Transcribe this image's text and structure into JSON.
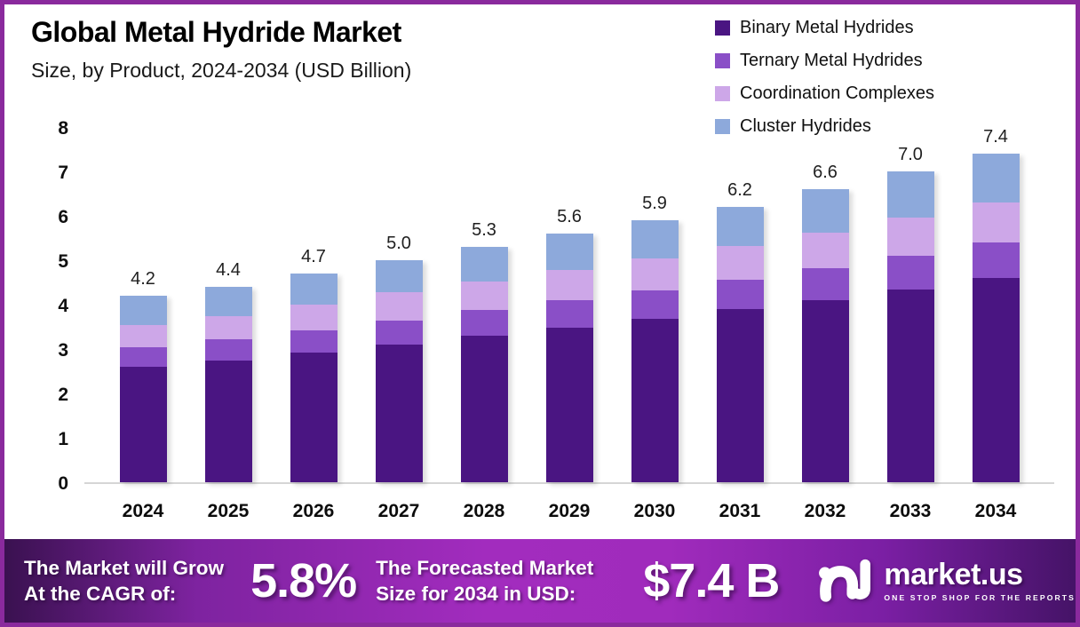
{
  "header": {
    "title": "Global Metal Hydride Market",
    "subtitle": "Size, by Product, 2024-2034 (USD Billion)"
  },
  "chart_data": {
    "type": "bar",
    "stacked": true,
    "title": "Global Metal Hydride Market Size, by Product, 2024-2034 (USD Billion)",
    "categories": [
      "2024",
      "2025",
      "2026",
      "2027",
      "2028",
      "2029",
      "2030",
      "2031",
      "2032",
      "2033",
      "2034"
    ],
    "totals": [
      4.2,
      4.4,
      4.7,
      5.0,
      5.3,
      5.6,
      5.9,
      6.2,
      6.6,
      7.0,
      7.4
    ],
    "series": [
      {
        "name": "Binary Metal Hydrides",
        "color": "#4A1582",
        "values": [
          2.6,
          2.75,
          2.93,
          3.1,
          3.3,
          3.48,
          3.68,
          3.9,
          4.1,
          4.35,
          4.6
        ]
      },
      {
        "name": "Ternary Metal Hydrides",
        "color": "#8A4FC7",
        "values": [
          0.45,
          0.48,
          0.5,
          0.55,
          0.58,
          0.62,
          0.64,
          0.66,
          0.72,
          0.75,
          0.8
        ]
      },
      {
        "name": "Coordination Complexes",
        "color": "#CDA7E8",
        "values": [
          0.5,
          0.52,
          0.57,
          0.63,
          0.65,
          0.68,
          0.73,
          0.76,
          0.81,
          0.86,
          0.9
        ]
      },
      {
        "name": "Cluster Hydrides",
        "color": "#8DA9DB",
        "values": [
          0.65,
          0.65,
          0.7,
          0.72,
          0.77,
          0.82,
          0.85,
          0.88,
          0.97,
          1.04,
          1.1
        ]
      }
    ],
    "xlabel": "",
    "ylabel": "",
    "ylim": [
      0,
      8
    ],
    "yticks": [
      0,
      1,
      2,
      3,
      4,
      5,
      6,
      7,
      8
    ],
    "grid": false,
    "legend_position": "top-right",
    "bar_label_format": "one-decimal"
  },
  "footer": {
    "cagr_line1": "The Market will Grow",
    "cagr_line2": "At the CAGR of:",
    "cagr_value": "5.8%",
    "forecast_line1": "The Forecasted Market",
    "forecast_line2": "Size for 2034 in USD:",
    "forecast_value": "$7.4 B",
    "brand": "market.us",
    "brand_tagline": "ONE STOP SHOP FOR THE REPORTS"
  },
  "colors": {
    "border": "#8A2A9D",
    "baseline": "#D6D6D6",
    "footer_gradient_left": "#3A1150",
    "footer_gradient_mid": "#A22CBE",
    "footer_gradient_right": "#451367"
  }
}
